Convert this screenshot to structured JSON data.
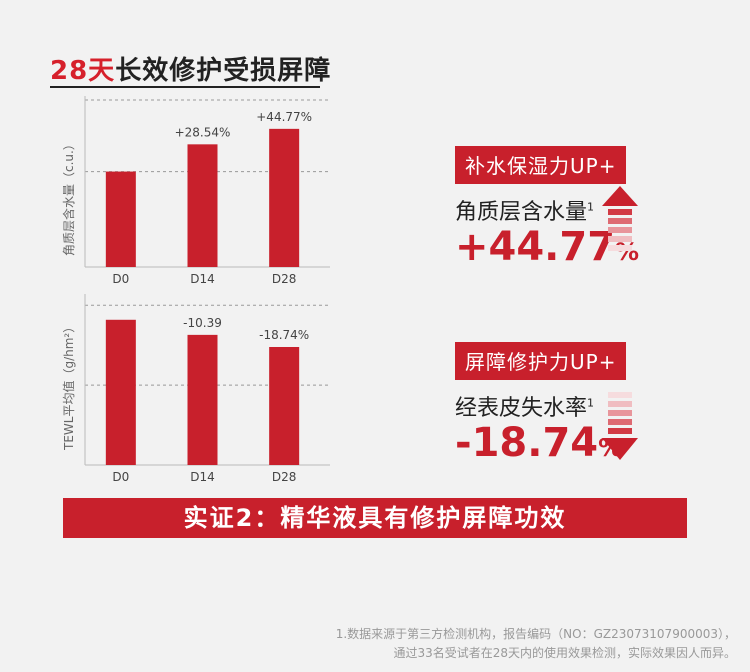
{
  "header": {
    "title_accent": "28天",
    "title_rest": "长效修护受损屏障"
  },
  "chart_data": [
    {
      "type": "bar",
      "categories": [
        "D0",
        "D14",
        "D28"
      ],
      "values": [
        1.0,
        1.2854,
        1.4477
      ],
      "data_labels": [
        "",
        "+28.54%",
        "+44.77%"
      ],
      "ylabel": "角质层含水量（c.u.）",
      "ylim": [
        0,
        1.75
      ],
      "grid_dashed_at": [
        1.0,
        1.75
      ],
      "color": "#c8202c"
    },
    {
      "type": "bar",
      "categories": [
        "D0",
        "D14",
        "D28"
      ],
      "values": [
        1.0,
        0.8961,
        0.8126
      ],
      "data_labels": [
        "",
        "-10.39",
        "-18.74%"
      ],
      "ylabel": "TEWL平均值（g/hm²）",
      "ylim": [
        0,
        1.15
      ],
      "grid_dashed_at": [
        0.55,
        1.1
      ],
      "color": "#c8202c"
    }
  ],
  "panels": [
    {
      "tag": "补水保湿力UP+",
      "label": "角质层含水量",
      "sup": "1",
      "value": "+44.77",
      "pct": "%",
      "direction": "up"
    },
    {
      "tag": "屏障修护力UP+",
      "label": "经表皮失水率",
      "sup": "1",
      "value": "-18.74",
      "pct": "%",
      "direction": "down"
    }
  ],
  "banner": {
    "text": "实证2：精华液具有修护屏障功效"
  },
  "footnote": {
    "line1": "1.数据来源于第三方检测机构，报告编码（NO：GZ23073107900003），",
    "line2": "通过33名受试者在28天内的使用效果检测，实际效果因人而异。"
  },
  "colors": {
    "accent": "#c8202c",
    "bg": "#f2f2f2"
  }
}
